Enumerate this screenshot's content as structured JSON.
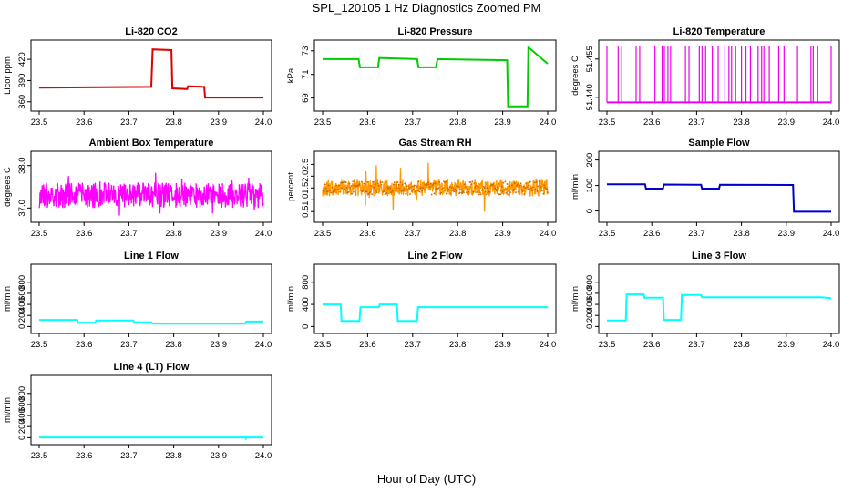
{
  "page": {
    "title": "SPL_120105  1 Hz Diagnostics Zoomed PM",
    "xlabel": "Hour of Day (UTC)"
  },
  "chart_data": [
    {
      "type": "line",
      "title": "Li-820 CO2",
      "ylabel": "Licor ppm",
      "color": "#e00000",
      "xlim": [
        23.5,
        24.0
      ],
      "ylim": [
        352,
        442
      ],
      "xticks": [
        23.5,
        23.6,
        23.7,
        23.8,
        23.9,
        24.0
      ],
      "xtick_labels": [
        "23.5",
        "23.6",
        "23.7",
        "23.8",
        "23.9",
        "24.0"
      ],
      "yticks": [
        360,
        390,
        420
      ],
      "ytick_labels": [
        "360",
        "390",
        "420"
      ],
      "series": [
        {
          "x": [
            23.5,
            23.75,
            23.753,
            23.795,
            23.797,
            23.83,
            23.832,
            23.868,
            23.87,
            24.0
          ],
          "y": [
            380,
            381,
            434,
            433,
            379,
            378,
            382,
            381,
            366,
            366
          ]
        }
      ]
    },
    {
      "type": "line",
      "title": "Li-820 Pressure",
      "ylabel": "kPa",
      "color": "#00cc00",
      "xlim": [
        23.5,
        24.0
      ],
      "ylim": [
        68.2,
        73.6
      ],
      "xticks": [
        23.5,
        23.6,
        23.7,
        23.8,
        23.9,
        24.0
      ],
      "xtick_labels": [
        "23.5",
        "23.6",
        "23.7",
        "23.8",
        "23.9",
        "24.0"
      ],
      "yticks": [
        69,
        71,
        73
      ],
      "ytick_labels": [
        "69",
        "71",
        "73"
      ],
      "series": [
        {
          "x": [
            23.5,
            23.58,
            23.583,
            23.623,
            23.626,
            23.71,
            23.713,
            23.752,
            23.755,
            23.91,
            23.912,
            23.955,
            23.957,
            24.0
          ],
          "y": [
            72.3,
            72.3,
            71.6,
            71.6,
            72.4,
            72.3,
            71.6,
            71.6,
            72.3,
            72.2,
            68.3,
            68.3,
            73.3,
            71.9
          ]
        }
      ]
    },
    {
      "type": "line",
      "title": "Li-820 Temperature",
      "ylabel": "degrees C",
      "color": "#ee00ee",
      "xlim": [
        23.5,
        24.0
      ],
      "ylim": [
        51.436,
        51.461
      ],
      "xticks": [
        23.5,
        23.6,
        23.7,
        23.8,
        23.9,
        24.0
      ],
      "xtick_labels": [
        "23.5",
        "23.6",
        "23.7",
        "23.8",
        "23.9",
        "24.0"
      ],
      "yticks": [
        51.44,
        51.455
      ],
      "ytick_labels": [
        "51.440",
        "51.455"
      ],
      "series": [
        {
          "x": [
            23.5,
            24.0
          ],
          "y": [
            51.438,
            51.438
          ]
        }
      ],
      "spikes": [
        23.5,
        23.525,
        23.533,
        23.565,
        23.573,
        23.607,
        23.623,
        23.628,
        23.636,
        23.642,
        23.675,
        23.683,
        23.706,
        23.712,
        23.72,
        23.735,
        23.748,
        23.763,
        23.772,
        23.778,
        23.787,
        23.8,
        23.81,
        23.82,
        23.837,
        23.845,
        23.85,
        23.862,
        23.883,
        23.895,
        23.925,
        23.955,
        23.96,
        23.97,
        24.0
      ],
      "spike_top": 51.46
    },
    {
      "type": "line",
      "title": "Ambient Box Temperature",
      "ylabel": "degrees C",
      "color": "#ff00ff",
      "xlim": [
        23.5,
        24.0
      ],
      "ylim": [
        36.75,
        38.25
      ],
      "xticks": [
        23.5,
        23.6,
        23.7,
        23.8,
        23.9,
        24.0
      ],
      "xtick_labels": [
        "23.5",
        "23.6",
        "23.7",
        "23.8",
        "23.9",
        "24.0"
      ],
      "yticks": [
        37.0,
        38.0
      ],
      "ytick_labels": [
        "37.0",
        "38.0"
      ],
      "noise": {
        "center": 37.3,
        "amp": 0.3,
        "spike_amp": 0.55
      }
    },
    {
      "type": "line",
      "title": "Gas Stream RH",
      "ylabel": "percent",
      "color": "#ff9900",
      "xlim": [
        23.5,
        24.0
      ],
      "ylim": [
        0.2,
        2.9
      ],
      "xticks": [
        23.5,
        23.6,
        23.7,
        23.8,
        23.9,
        24.0
      ],
      "xtick_labels": [
        "23.5",
        "23.6",
        "23.7",
        "23.8",
        "23.9",
        "24.0"
      ],
      "yticks": [
        0.5,
        1.0,
        1.5,
        2.0,
        2.5
      ],
      "ytick_labels": [
        "0.5",
        "1.0",
        "1.5",
        "2.0",
        "2.5"
      ],
      "noise": {
        "center": 1.5,
        "amp": 0.35,
        "spike_amp": 1.2
      }
    },
    {
      "type": "line",
      "title": "Sample Flow",
      "ylabel": "ml/min",
      "color": "#0000cc",
      "xlim": [
        23.5,
        24.0
      ],
      "ylim": [
        -30,
        220
      ],
      "xticks": [
        23.5,
        23.6,
        23.7,
        23.8,
        23.9,
        24.0
      ],
      "xtick_labels": [
        "23.5",
        "23.6",
        "23.7",
        "23.8",
        "23.9",
        "24.0"
      ],
      "yticks": [
        0,
        100,
        200
      ],
      "ytick_labels": [
        "0",
        "100",
        "200"
      ],
      "series": [
        {
          "x": [
            23.5,
            23.585,
            23.587,
            23.625,
            23.627,
            23.71,
            23.712,
            23.75,
            23.752,
            23.915,
            23.917,
            24.0
          ],
          "y": [
            105,
            105,
            88,
            88,
            104,
            103,
            88,
            88,
            103,
            102,
            -3,
            -3
          ]
        }
      ]
    },
    {
      "type": "line",
      "title": "Line 1 Flow",
      "ylabel": "ml/min",
      "color": "#00ffff",
      "xlim": [
        23.5,
        24.0
      ],
      "ylim": [
        -60,
        1060
      ],
      "xticks": [
        23.5,
        23.6,
        23.7,
        23.8,
        23.9,
        24.0
      ],
      "xtick_labels": [
        "23.5",
        "23.6",
        "23.7",
        "23.8",
        "23.9",
        "24.0"
      ],
      "yticks": [
        0,
        200,
        400,
        600,
        800
      ],
      "ytick_labels": [
        "0",
        "200",
        "400",
        "600",
        "800"
      ],
      "series": [
        {
          "x": [
            23.5,
            23.585,
            23.587,
            23.625,
            23.627,
            23.71,
            23.712,
            23.75,
            23.752,
            23.96,
            23.962,
            24.0
          ],
          "y": [
            120,
            120,
            70,
            70,
            110,
            110,
            75,
            75,
            50,
            50,
            90,
            90
          ]
        }
      ]
    },
    {
      "type": "line",
      "title": "Line 2 Flow",
      "ylabel": "ml/min",
      "color": "#00ffff",
      "xlim": [
        23.5,
        24.0
      ],
      "ylim": [
        -60,
        1060
      ],
      "xticks": [
        23.5,
        23.6,
        23.7,
        23.8,
        23.9,
        24.0
      ],
      "xtick_labels": [
        "23.5",
        "23.6",
        "23.7",
        "23.8",
        "23.9",
        "24.0"
      ],
      "yticks": [
        0,
        400,
        800
      ],
      "ytick_labels": [
        "0",
        "400",
        "800"
      ],
      "series": [
        {
          "x": [
            23.5,
            23.54,
            23.542,
            23.582,
            23.584,
            23.625,
            23.627,
            23.665,
            23.667,
            23.71,
            23.712,
            24.0
          ],
          "y": [
            400,
            400,
            100,
            100,
            350,
            350,
            400,
            400,
            100,
            100,
            350,
            350
          ]
        }
      ]
    },
    {
      "type": "line",
      "title": "Line 3 Flow",
      "ylabel": "ml/min",
      "color": "#00ffff",
      "xlim": [
        23.5,
        24.0
      ],
      "ylim": [
        -60,
        1060
      ],
      "xticks": [
        23.5,
        23.6,
        23.7,
        23.8,
        23.9,
        24.0
      ],
      "xtick_labels": [
        "23.5",
        "23.6",
        "23.7",
        "23.8",
        "23.9",
        "24.0"
      ],
      "yticks": [
        0,
        200,
        400,
        600,
        800
      ],
      "ytick_labels": [
        "0",
        "200",
        "400",
        "600",
        "800"
      ],
      "series": [
        {
          "x": [
            23.5,
            23.502,
            23.542,
            23.544,
            23.582,
            23.584,
            23.625,
            23.627,
            23.665,
            23.667,
            23.71,
            23.712,
            23.98,
            24.0
          ],
          "y": [
            110,
            110,
            110,
            580,
            580,
            520,
            520,
            120,
            120,
            570,
            570,
            530,
            530,
            510
          ]
        }
      ]
    },
    {
      "type": "line",
      "title": "Line 4 (LT) Flow",
      "ylabel": "ml/min",
      "color": "#00ffff",
      "xlim": [
        23.5,
        24.0
      ],
      "ylim": [
        -60,
        1060
      ],
      "xticks": [
        23.5,
        23.6,
        23.7,
        23.8,
        23.9,
        24.0
      ],
      "xtick_labels": [
        "23.5",
        "23.6",
        "23.7",
        "23.8",
        "23.9",
        "24.0"
      ],
      "yticks": [
        0,
        200,
        400,
        600,
        800
      ],
      "ytick_labels": [
        "0",
        "200",
        "400",
        "600",
        "800"
      ],
      "series": [
        {
          "x": [
            23.5,
            23.96,
            23.961,
            23.962,
            24.0
          ],
          "y": [
            5,
            5,
            -15,
            5,
            5
          ]
        }
      ]
    }
  ]
}
